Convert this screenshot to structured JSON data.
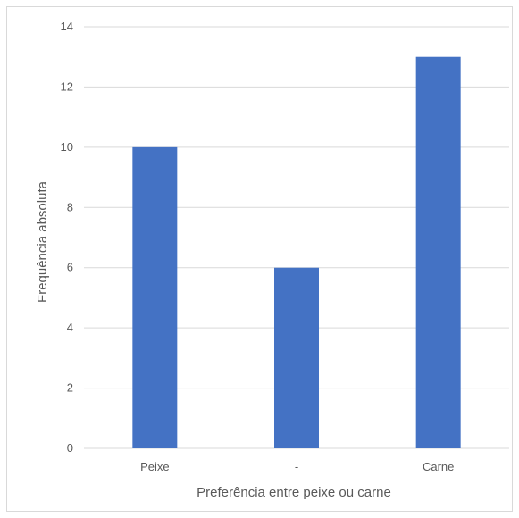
{
  "chart_data": {
    "type": "bar",
    "title": "",
    "xlabel": "Preferência entre peixe ou carne",
    "ylabel": "Frequência absoluta",
    "categories": [
      "Peixe",
      "-",
      "Carne"
    ],
    "values": [
      10,
      6,
      13
    ],
    "ylim": [
      0,
      14
    ],
    "yticks": [
      "0",
      "2",
      "4",
      "6",
      "8",
      "10",
      "12",
      "14"
    ],
    "grid": true,
    "legend": "none",
    "bar_color": "#4472c4",
    "grid_color": "#d9d9d9"
  }
}
